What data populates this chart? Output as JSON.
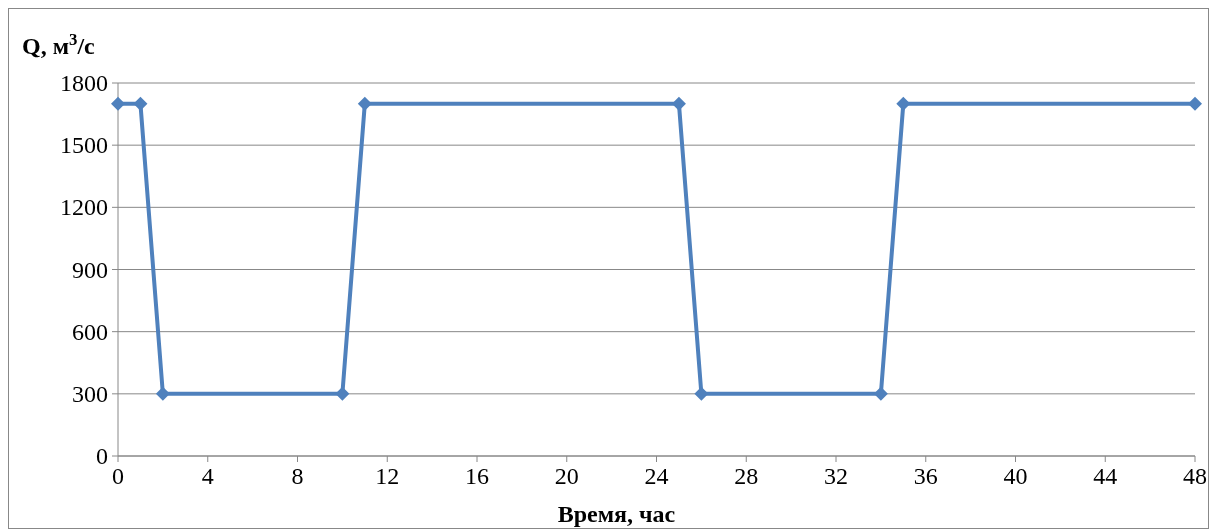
{
  "chart_data": {
    "type": "line",
    "xlabel": "Время, час",
    "ylabel": "Q, м$^{3}$/с",
    "x": [
      0,
      1,
      2,
      10,
      11,
      25,
      26,
      34,
      35,
      48
    ],
    "series": [
      {
        "color": "#4f81bd",
        "values": [
          1700,
          1700,
          300,
          300,
          1700,
          1700,
          300,
          300,
          1700,
          1700
        ]
      }
    ],
    "xlim": [
      0,
      48
    ],
    "xticks": [
      0,
      4,
      8,
      12,
      16,
      20,
      24,
      28,
      32,
      36,
      40,
      44,
      48
    ],
    "ylim": [
      0,
      1800
    ],
    "yticks": [
      0,
      300,
      600,
      900,
      1200,
      1500,
      1800
    ],
    "grid": "y",
    "marker": "diamond",
    "line_style": "solid"
  }
}
